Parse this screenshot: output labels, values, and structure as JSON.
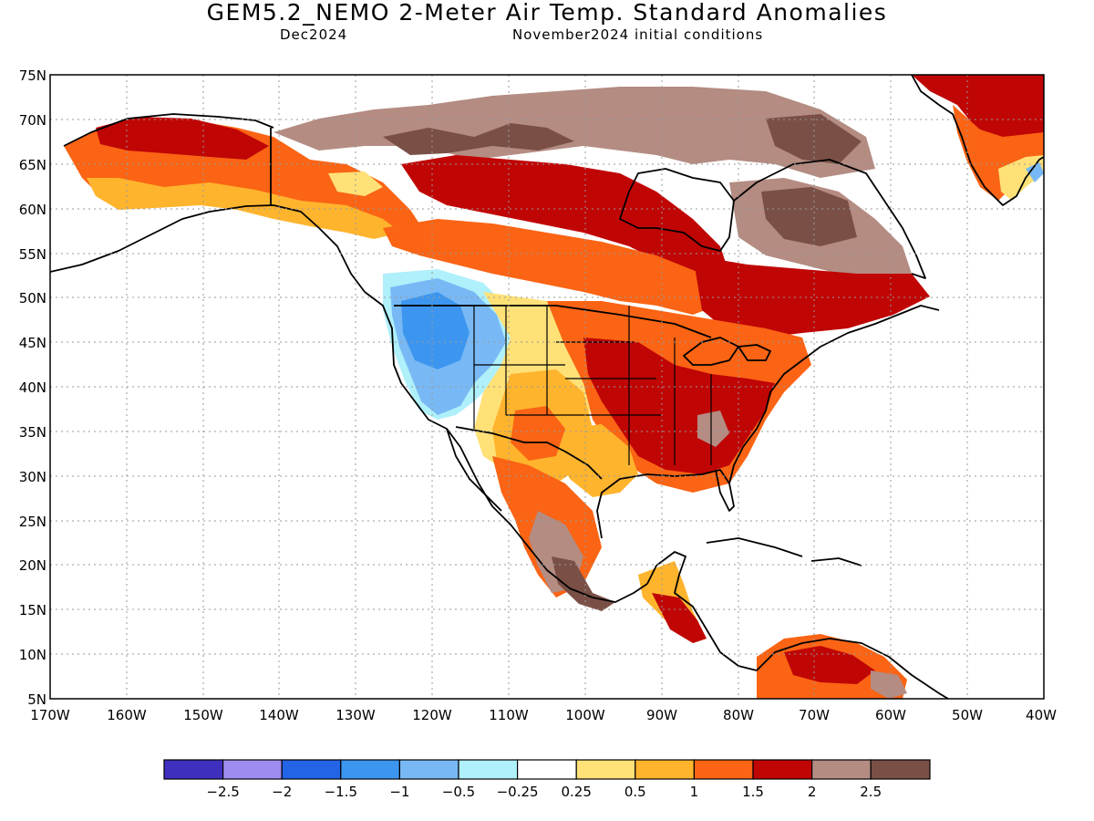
{
  "header": {
    "title": "GEM5.2_NEMO 2-Meter Air Temp. Standard Anomalies",
    "valid_month": "Dec2024",
    "initial_conditions": "November2024 initial conditions"
  },
  "map": {
    "lat_ticks": [
      "75N",
      "70N",
      "65N",
      "60N",
      "55N",
      "50N",
      "45N",
      "40N",
      "35N",
      "30N",
      "25N",
      "20N",
      "15N",
      "10N",
      "5N"
    ],
    "lon_ticks": [
      "170W",
      "160W",
      "150W",
      "140W",
      "130W",
      "120W",
      "110W",
      "100W",
      "90W",
      "80W",
      "70W",
      "60W",
      "50W",
      "40W"
    ],
    "extent": {
      "lon_min": -170,
      "lon_max": -40,
      "lat_min": 5,
      "lat_max": 75
    }
  },
  "colorbar": {
    "bins": [
      {
        "color": "#3f2fbf"
      },
      {
        "color": "#a08cf0"
      },
      {
        "color": "#2364e6"
      },
      {
        "color": "#3c96f0"
      },
      {
        "color": "#78b9f5"
      },
      {
        "color": "#aff0fa"
      },
      {
        "color": "#ffffff"
      },
      {
        "color": "#ffe178"
      },
      {
        "color": "#ffb42d"
      },
      {
        "color": "#fa6414"
      },
      {
        "color": "#c00505"
      },
      {
        "color": "#b48c82"
      },
      {
        "color": "#7a5046"
      }
    ],
    "labels": [
      "−2.5",
      "−2",
      "−1.5",
      "−1",
      "−0.5",
      "−0.25",
      "0.25",
      "0.5",
      "1",
      "1.5",
      "2",
      "2.5"
    ]
  }
}
